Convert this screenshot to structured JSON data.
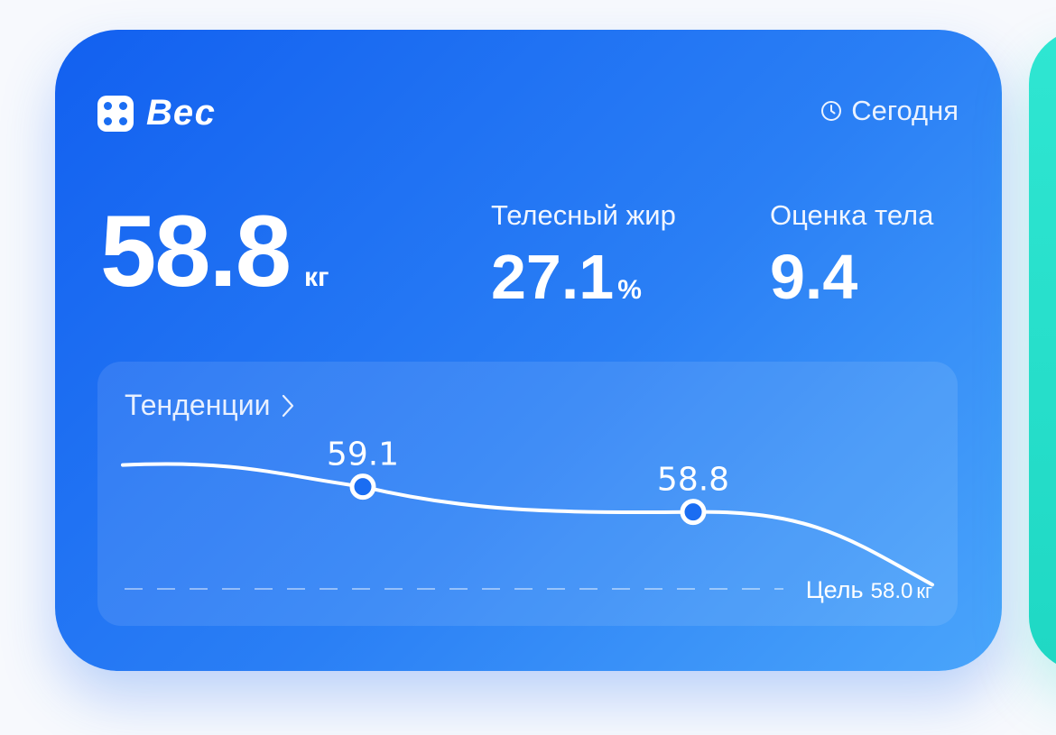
{
  "app": {
    "title": "Вес",
    "icon": "app-grid-icon",
    "date_label": "Сегодня",
    "date_icon": "clock-icon"
  },
  "weight": {
    "value": "58.8",
    "unit": "кг"
  },
  "metrics": [
    {
      "label": "Телесный жир",
      "value": "27.1",
      "unit": "%"
    },
    {
      "label": "Оценка тела",
      "value": "9.4",
      "unit": ""
    }
  ],
  "trend": {
    "title": "Тенденции",
    "goal_label": "Цель",
    "goal_value": "58.0",
    "goal_unit": "кг"
  },
  "chart_data": {
    "type": "line",
    "title": "Тенденции",
    "series": [
      {
        "values": [
          59.1,
          58.8
        ],
        "labels": [
          "59.1",
          "58.8"
        ]
      }
    ],
    "goal": 58.0,
    "ylim": [
      57.8,
      59.3
    ],
    "grid": false
  },
  "colors": {
    "card_start": "#1260f0",
    "card_end": "#4aa5fb",
    "accent": "#1a6df2",
    "side_card": "#1fd8c4"
  }
}
